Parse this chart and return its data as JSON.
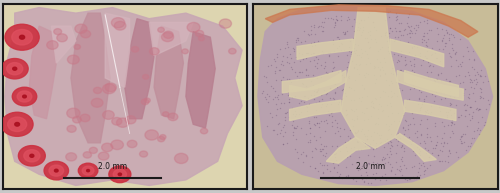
{
  "fig_width": 5.0,
  "fig_height": 1.93,
  "dpi": 100,
  "outer_bg": "#c8c8c8",
  "border_color": "#1a1a1a",
  "border_linewidth": 1.5,
  "scale_bar_label": "2.0 mm",
  "scale_bar_fontsize": 5.5,
  "left_panel": {
    "bg_color": "#ddd5b0",
    "tissue_color": "#c8a8b4",
    "fold_colors": [
      "#c0909c",
      "#b88090",
      "#c898a4"
    ],
    "stroma_color": "#d4b4bc",
    "oocyte_outer": "#cc3040",
    "oocyte_inner": "#e05060",
    "oocyte_nucleus": "#aa1020",
    "small_oocyte": "#c87888",
    "scale_bar_color": "#1a1a1a"
  },
  "right_panel": {
    "bg_color": "#c8bc98",
    "tissue_color": "#b8a0b0",
    "stroma_color": "#d8ccaa",
    "capsule_color": "#cc7850",
    "cell_color": "#6a5070",
    "scale_bar_color": "#1a1a1a"
  }
}
